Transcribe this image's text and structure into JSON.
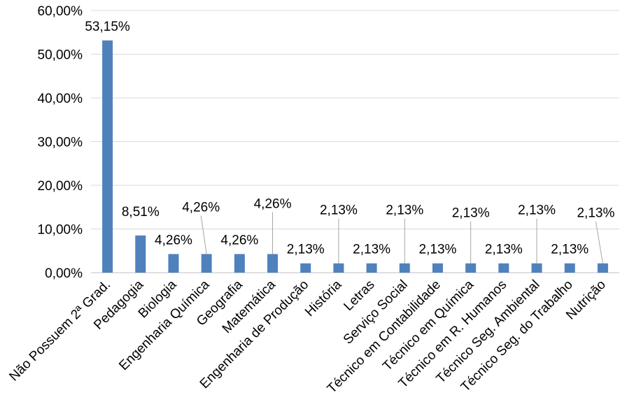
{
  "chart_data": {
    "type": "bar",
    "title": "",
    "xlabel": "",
    "ylabel": "",
    "ylim": [
      0,
      60
    ],
    "y_ticks": [
      "0,00%",
      "10,00%",
      "20,00%",
      "30,00%",
      "40,00%",
      "50,00%",
      "60,00%"
    ],
    "grid": "horizontal",
    "legend": "none",
    "bar_color": "#4F81BD",
    "categories": [
      "Não Possuem 2ª Grad.",
      "Pedagogia",
      "Biologia",
      "Engenharia Química",
      "Geografia",
      "Matemática",
      "Engenharia de Produção",
      "História",
      "Letras",
      "Serviço Social",
      "Técnico em Contabilidade",
      "Técnico em Química",
      "Técnico em R. Humanos",
      "Técnico Seg. Ambiental",
      "Técnico Seg. do Trabalho",
      "Nutrição"
    ],
    "values": [
      53.15,
      8.51,
      4.26,
      4.26,
      4.26,
      4.26,
      2.13,
      2.13,
      2.13,
      2.13,
      2.13,
      2.13,
      2.13,
      2.13,
      2.13,
      2.13
    ],
    "data_labels": [
      "53,15%",
      "8,51%",
      "4,26%",
      "4,26%",
      "4,26%",
      "4,26%",
      "2,13%",
      "2,13%",
      "2,13%",
      "2,13%",
      "2,13%",
      "2,13%",
      "2,13%",
      "2,13%",
      "2,13%",
      "2,13%"
    ]
  }
}
